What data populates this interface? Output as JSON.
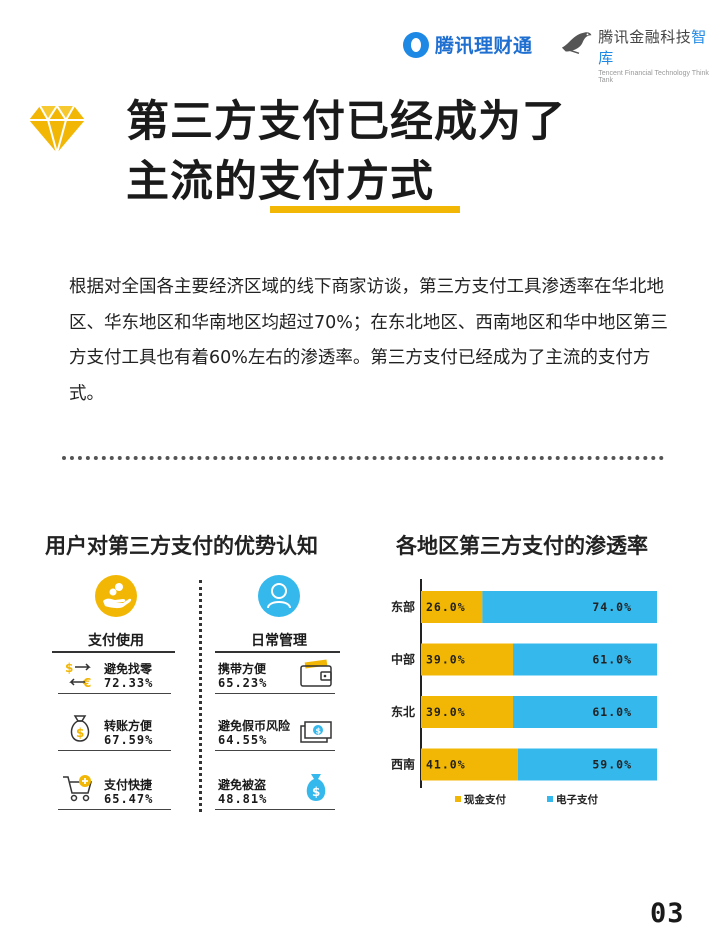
{
  "header": {
    "logo1_text": "腾讯理财通",
    "logo2_text_main": "腾讯金融科技",
    "logo2_text_accent": "智库",
    "logo2_subtext": "Tencent Financial Technology Think Tank"
  },
  "title": {
    "line1": "第三方支付已经成为了",
    "line2": "主流的支付方式"
  },
  "body_text": "根据对全国各主要经济区域的线下商家访谈，第三方支付工具渗透率在华北地区、华东地区和华南地区均超过70%；在东北地区、西南地区和华中地区第三方支付工具也有着60%左右的渗透率。第三方支付已经成为了主流的支付方式。",
  "left_section": {
    "heading": "用户对第三方支付的优势认知",
    "categories": [
      {
        "label": "支付使用",
        "icon": "hand-coins-icon",
        "items": [
          {
            "label": "避免找零",
            "value": "72.33%",
            "icon": "currency-exchange-icon"
          },
          {
            "label": "转账方便",
            "value": "67.59%",
            "icon": "money-bag-icon"
          },
          {
            "label": "支付快捷",
            "value": "65.47%",
            "icon": "cart-icon"
          }
        ]
      },
      {
        "label": "日常管理",
        "icon": "user-icon",
        "items": [
          {
            "label": "携带方便",
            "value": "65.23%",
            "icon": "wallet-icon"
          },
          {
            "label": "避免假币风险",
            "value": "64.55%",
            "icon": "banknotes-icon"
          },
          {
            "label": "避免被盗",
            "value": "48.81%",
            "icon": "dollar-bag-icon"
          }
        ]
      }
    ]
  },
  "right_section": {
    "heading": "各地区第三方支付的渗透率"
  },
  "chart_data": {
    "type": "bar",
    "orientation": "horizontal",
    "stacked": true,
    "categories": [
      "东部",
      "中部",
      "东北",
      "西南"
    ],
    "series": [
      {
        "name": "现金支付",
        "values": [
          26.0,
          39.0,
          39.0,
          41.0
        ],
        "color": "#f2b705"
      },
      {
        "name": "电子支付",
        "values": [
          74.0,
          61.0,
          61.0,
          59.0
        ],
        "color": "#35b8ec"
      }
    ],
    "value_labels": [
      [
        "26.0%",
        "39.0%",
        "39.0%",
        "41.0%"
      ],
      [
        "74.0%",
        "61.0%",
        "61.0%",
        "59.0%"
      ]
    ],
    "xlim": [
      0,
      100
    ],
    "legend_position": "bottom",
    "grid": false
  },
  "colors": {
    "accent_yellow": "#f2b705",
    "accent_blue": "#35b8ec",
    "brand_blue": "#1e88e5"
  },
  "page_number": "03"
}
